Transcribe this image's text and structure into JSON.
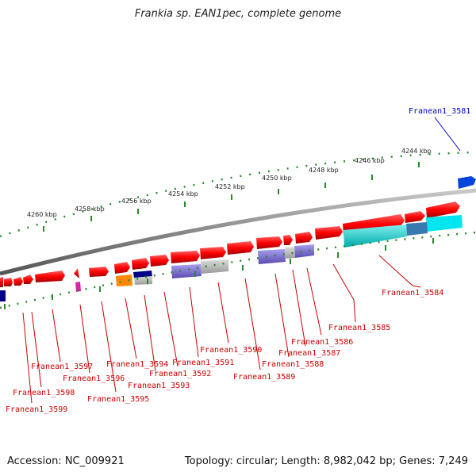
{
  "title": "Frankia sp. EAN1pec, complete genome",
  "footer": {
    "accession": "Accession: NC_009921",
    "summary": "Topology: circular; Length: 8,982,042 bp; Genes: 7,249"
  },
  "ticks": [
    "4244 kbp",
    "4246 kbp",
    "4248 kbp",
    "4250 kbp",
    "4252 kbp",
    "4254 kbp",
    "4256 kbp",
    "4258 kbp",
    "4260 kbp"
  ],
  "genes": [
    {
      "id": "Franean1_3581",
      "color": "blue"
    },
    {
      "id": "Franean1_3584"
    },
    {
      "id": "Franean1_3585"
    },
    {
      "id": "Franean1_3586"
    },
    {
      "id": "Franean1_3587"
    },
    {
      "id": "Franean1_3588"
    },
    {
      "id": "Franean1_3589"
    },
    {
      "id": "Franean1_3590"
    },
    {
      "id": "Franean1_3591"
    },
    {
      "id": "Franean1_3592"
    },
    {
      "id": "Franean1_3593"
    },
    {
      "id": "Franean1_3594"
    },
    {
      "id": "Franean1_3595"
    },
    {
      "id": "Franean1_3596"
    },
    {
      "id": "Franean1_3597"
    },
    {
      "id": "Franean1_3598"
    },
    {
      "id": "Franean1_3599"
    }
  ],
  "colors": {
    "cds_forward": "#ff0000",
    "cds_reverse": "#ff0000",
    "backbone": "#888888",
    "tick": "#2a8a2a",
    "label_red": "#cc0000",
    "label_blue": "#0000cc",
    "cog_cyan": "#00c8c8",
    "cog_purple": "#7766cc",
    "cog_gray": "#b0b0b0",
    "cog_orange": "#ff8800",
    "cog_magenta": "#dd22aa",
    "cog_navy": "#000088"
  }
}
